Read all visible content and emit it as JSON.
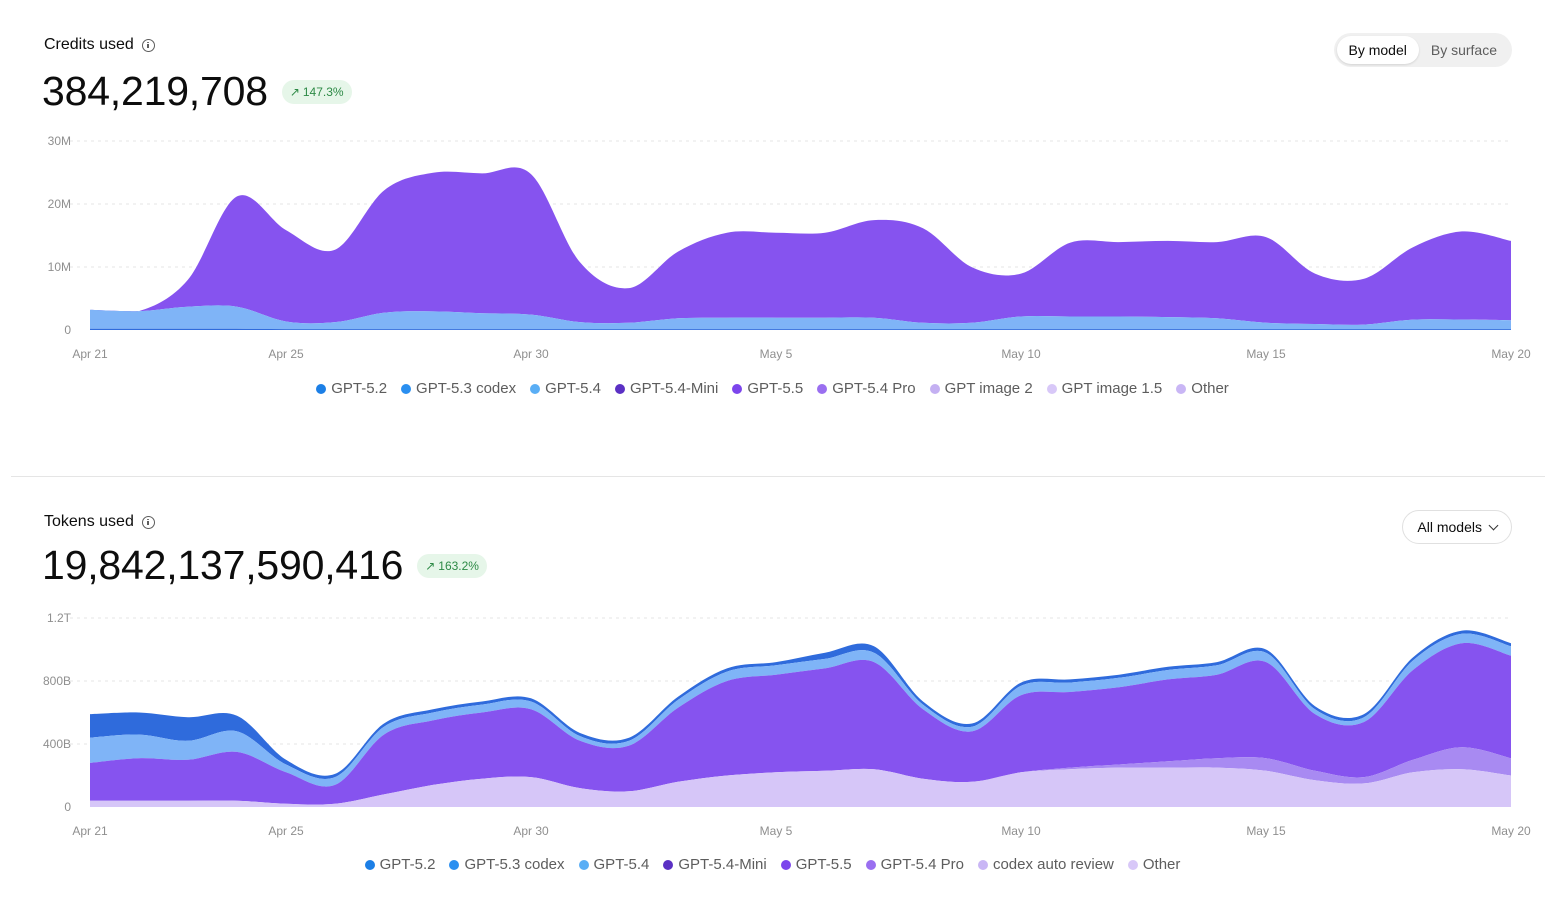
{
  "credits": {
    "title": "Credits used",
    "total": "384,219,708",
    "change": "147.3%",
    "toggle": [
      "By model",
      "By surface"
    ],
    "active_toggle": 0
  },
  "tokens": {
    "title": "Tokens used",
    "total": "19,842,137,590,416",
    "change": "163.2%",
    "filter_label": "All models"
  },
  "chart_data": [
    {
      "type": "area",
      "stacked": true,
      "title": "Credits used",
      "x": [
        "Apr 21",
        "Apr 22",
        "Apr 23",
        "Apr 24",
        "Apr 25",
        "Apr 26",
        "Apr 27",
        "Apr 28",
        "Apr 29",
        "Apr 30",
        "May 1",
        "May 2",
        "May 3",
        "May 4",
        "May 5",
        "May 6",
        "May 7",
        "May 8",
        "May 9",
        "May 10",
        "May 11",
        "May 12",
        "May 13",
        "May 14",
        "May 15",
        "May 16",
        "May 17",
        "May 18",
        "May 19",
        "May 20"
      ],
      "xticks": [
        "Apr 21",
        "Apr 25",
        "Apr 30",
        "May 5",
        "May 10",
        "May 15",
        "May 20"
      ],
      "yticks": [
        "0",
        "10M",
        "20M",
        "30M"
      ],
      "ylim": [
        0,
        30000000
      ],
      "grid": true,
      "legend": [
        "GPT-5.2",
        "GPT-5.3 codex",
        "GPT-5.4",
        "GPT-5.4-Mini",
        "GPT-5.5",
        "GPT-5.4 Pro",
        "GPT image 2",
        "GPT image 1.5",
        "Other"
      ],
      "legend_colors": [
        "#1c7fe6",
        "#2a8ff0",
        "#5aaef5",
        "#5b30c4",
        "#7c45ec",
        "#9a6ff0",
        "#c4b0f2",
        "#d8c8f8",
        "#c9b6f5"
      ],
      "series": [
        {
          "name": "GPT-5.2",
          "color": "#2f6bdc",
          "values": [
            200000,
            200000,
            200000,
            200000,
            150000,
            150000,
            150000,
            150000,
            150000,
            150000,
            150000,
            150000,
            150000,
            150000,
            150000,
            150000,
            150000,
            150000,
            150000,
            150000,
            150000,
            150000,
            150000,
            150000,
            150000,
            150000,
            150000,
            150000,
            150000,
            150000
          ]
        },
        {
          "name": "GPT-5.4",
          "color": "#7fb4f7",
          "values": [
            3000000,
            2800000,
            3500000,
            3500000,
            1200000,
            1100000,
            2600000,
            2800000,
            2500000,
            2300000,
            1100000,
            1000000,
            1700000,
            1800000,
            1800000,
            1800000,
            1800000,
            1000000,
            1000000,
            2000000,
            2000000,
            2000000,
            1900000,
            1700000,
            1000000,
            800000,
            700000,
            1500000,
            1500000,
            1400000
          ]
        },
        {
          "name": "GPT-5.5",
          "color": "#8653ef",
          "values": [
            0,
            0,
            4300000,
            17500000,
            14500000,
            11500000,
            19400000,
            22000000,
            22200000,
            22300000,
            9500000,
            5500000,
            10600000,
            13500000,
            13500000,
            13500000,
            15500000,
            15000000,
            8800000,
            6800000,
            11700000,
            11800000,
            12100000,
            12100000,
            13600000,
            8000000,
            7300000,
            11500000,
            14000000,
            12600000
          ]
        }
      ]
    },
    {
      "type": "area",
      "stacked": true,
      "title": "Tokens used",
      "x": [
        "Apr 21",
        "Apr 22",
        "Apr 23",
        "Apr 24",
        "Apr 25",
        "Apr 26",
        "Apr 27",
        "Apr 28",
        "Apr 29",
        "Apr 30",
        "May 1",
        "May 2",
        "May 3",
        "May 4",
        "May 5",
        "May 6",
        "May 7",
        "May 8",
        "May 9",
        "May 10",
        "May 11",
        "May 12",
        "May 13",
        "May 14",
        "May 15",
        "May 16",
        "May 17",
        "May 18",
        "May 19",
        "May 20"
      ],
      "xticks": [
        "Apr 21",
        "Apr 25",
        "Apr 30",
        "May 5",
        "May 10",
        "May 15",
        "May 20"
      ],
      "yticks": [
        "0",
        "400B",
        "800B",
        "1.2T"
      ],
      "ylim": [
        0,
        1200000000000
      ],
      "grid": true,
      "legend": [
        "GPT-5.2",
        "GPT-5.3 codex",
        "GPT-5.4",
        "GPT-5.4-Mini",
        "GPT-5.5",
        "GPT-5.4 Pro",
        "codex auto review",
        "Other"
      ],
      "legend_colors": [
        "#1c7fe6",
        "#2a8ff0",
        "#5aaef5",
        "#5b30c4",
        "#7c45ec",
        "#9a6ff0",
        "#c9b6f5",
        "#d8c8f8"
      ],
      "series": [
        {
          "name": "Other",
          "color": "#d6c6f8",
          "values": [
            40000000000,
            40000000000,
            40000000000,
            40000000000,
            20000000000,
            20000000000,
            80000000000,
            140000000000,
            180000000000,
            190000000000,
            120000000000,
            100000000000,
            160000000000,
            200000000000,
            220000000000,
            230000000000,
            240000000000,
            180000000000,
            160000000000,
            220000000000,
            240000000000,
            250000000000,
            250000000000,
            250000000000,
            230000000000,
            170000000000,
            150000000000,
            220000000000,
            240000000000,
            200000000000
          ]
        },
        {
          "name": "codex auto review",
          "color": "#a88af2",
          "values": [
            0,
            0,
            0,
            0,
            0,
            0,
            0,
            0,
            0,
            0,
            0,
            0,
            0,
            0,
            0,
            0,
            0,
            0,
            0,
            0,
            10000000000,
            20000000000,
            40000000000,
            60000000000,
            80000000000,
            60000000000,
            40000000000,
            80000000000,
            140000000000,
            110000000000
          ]
        },
        {
          "name": "GPT-5.5",
          "color": "#8653ef",
          "values": [
            240000000000,
            270000000000,
            260000000000,
            310000000000,
            200000000000,
            120000000000,
            380000000000,
            410000000000,
            420000000000,
            430000000000,
            300000000000,
            290000000000,
            470000000000,
            600000000000,
            620000000000,
            650000000000,
            680000000000,
            440000000000,
            320000000000,
            490000000000,
            480000000000,
            490000000000,
            520000000000,
            530000000000,
            610000000000,
            360000000000,
            350000000000,
            570000000000,
            660000000000,
            650000000000
          ]
        },
        {
          "name": "GPT-5.4",
          "color": "#7fb4f7",
          "values": [
            160000000000,
            150000000000,
            120000000000,
            130000000000,
            50000000000,
            50000000000,
            50000000000,
            50000000000,
            50000000000,
            50000000000,
            30000000000,
            30000000000,
            50000000000,
            60000000000,
            60000000000,
            60000000000,
            60000000000,
            30000000000,
            30000000000,
            60000000000,
            60000000000,
            60000000000,
            60000000000,
            60000000000,
            60000000000,
            30000000000,
            30000000000,
            60000000000,
            60000000000,
            60000000000
          ]
        },
        {
          "name": "GPT-5.2",
          "color": "#2f6bdc",
          "values": [
            150000000000,
            140000000000,
            150000000000,
            100000000000,
            30000000000,
            20000000000,
            20000000000,
            20000000000,
            20000000000,
            20000000000,
            20000000000,
            20000000000,
            20000000000,
            20000000000,
            20000000000,
            40000000000,
            40000000000,
            20000000000,
            20000000000,
            20000000000,
            20000000000,
            20000000000,
            20000000000,
            20000000000,
            20000000000,
            20000000000,
            20000000000,
            20000000000,
            20000000000,
            20000000000
          ]
        }
      ]
    }
  ]
}
